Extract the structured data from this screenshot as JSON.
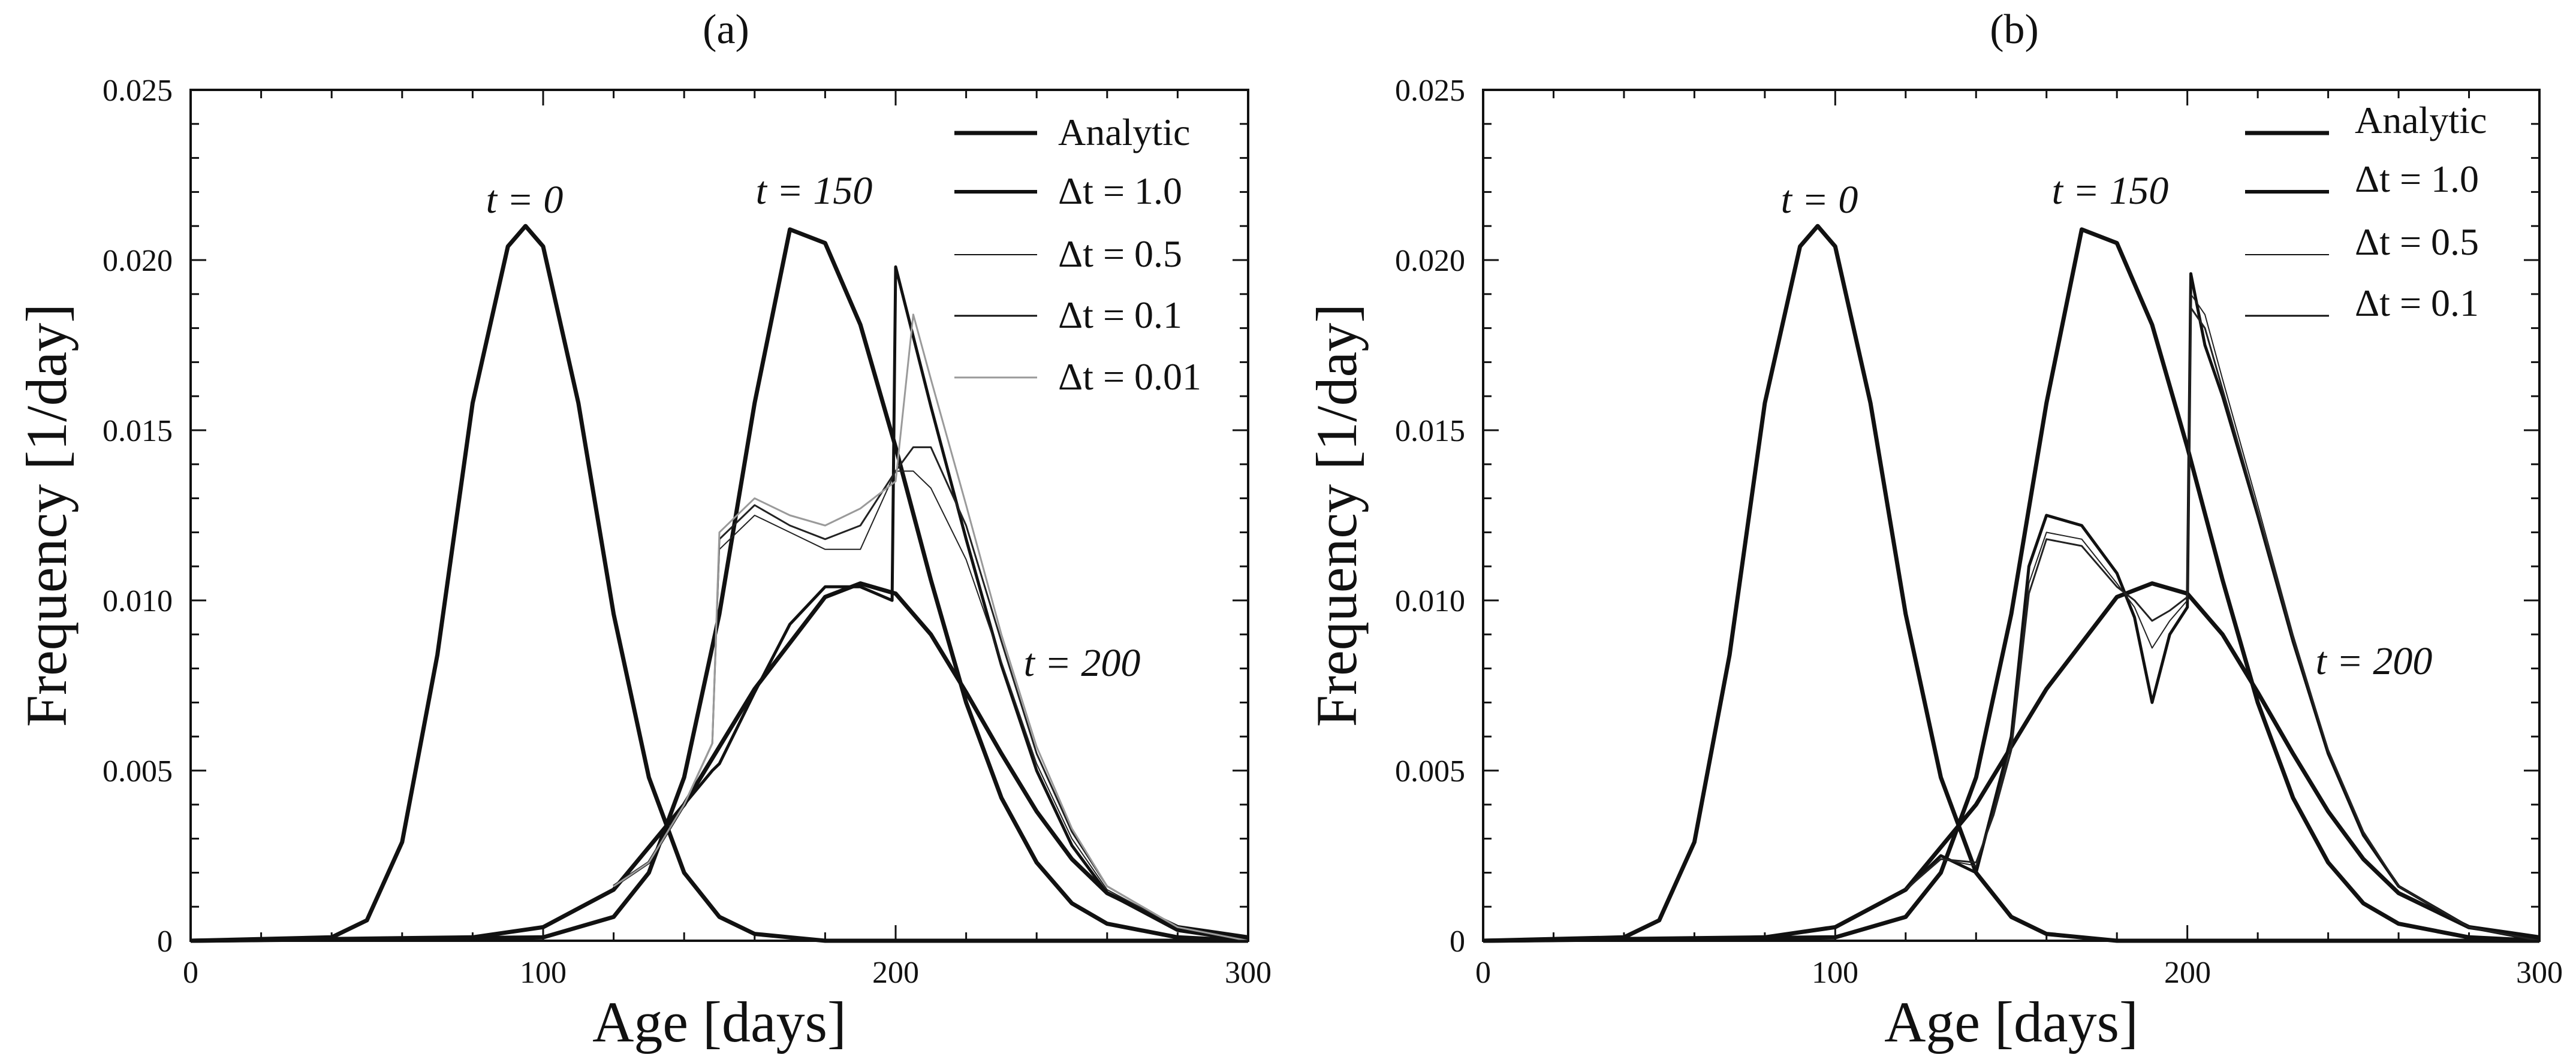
{
  "chart_data": [
    {
      "type": "line",
      "panel_label": "(a)",
      "xlabel": "Age [days]",
      "ylabel": "Frequency [1/day]",
      "xlim": [
        0,
        300
      ],
      "ylim": [
        0,
        0.025
      ],
      "xticks": [
        "0",
        "100",
        "200",
        "300"
      ],
      "yticks": [
        "0",
        "0.005",
        "0.010",
        "0.015",
        "0.020",
        "0.025"
      ],
      "grid": false,
      "legend_position": "top-right",
      "legend": [
        {
          "label": "Analytic",
          "weight": "bold"
        },
        {
          "label": "Δt = 1.0",
          "weight": "bold"
        },
        {
          "label": "Δt = 0.5",
          "weight": "thin"
        },
        {
          "label": "Δt = 0.1",
          "weight": "medium"
        },
        {
          "label": "Δt = 0.01",
          "weight": "light"
        }
      ],
      "annotations": [
        {
          "text": "t = 0",
          "x": 95,
          "y": 0.0215
        },
        {
          "text": "t = 150",
          "x": 170,
          "y": 0.0216
        },
        {
          "text": "t = 200",
          "x": 240,
          "y": 0.0079
        }
      ],
      "series": [
        {
          "name": "Analytic, t = 0",
          "x": [
            0,
            40,
            50,
            60,
            70,
            80,
            90,
            95,
            100,
            110,
            120,
            130,
            140,
            150,
            160,
            170,
            180,
            200,
            230,
            300
          ],
          "y": [
            0,
            0.0001,
            0.0006,
            0.0029,
            0.0084,
            0.0158,
            0.0204,
            0.021,
            0.0204,
            0.0158,
            0.0096,
            0.0048,
            0.002,
            0.0007,
            0.0002,
            0.0001,
            0,
            0,
            0,
            0
          ]
        },
        {
          "name": "Analytic, t = 150",
          "x": [
            0,
            100,
            120,
            130,
            140,
            150,
            160,
            170,
            180,
            190,
            200,
            210,
            220,
            230,
            240,
            250,
            260,
            280,
            300
          ],
          "y": [
            0,
            0.0001,
            0.0007,
            0.002,
            0.0048,
            0.0096,
            0.0158,
            0.0209,
            0.0205,
            0.0181,
            0.0145,
            0.0106,
            0.007,
            0.0042,
            0.0023,
            0.0011,
            0.0005,
            0.0001,
            0
          ]
        },
        {
          "name": "Analytic, t = 200",
          "x": [
            0,
            80,
            100,
            120,
            140,
            160,
            180,
            190,
            200,
            210,
            220,
            230,
            240,
            250,
            260,
            280,
            300
          ],
          "y": [
            0,
            0.0001,
            0.0004,
            0.0015,
            0.004,
            0.0074,
            0.0101,
            0.0105,
            0.0102,
            0.009,
            0.0073,
            0.0055,
            0.0038,
            0.0024,
            0.0014,
            0.0004,
            0.0001
          ]
        },
        {
          "name": "Δt = 1.0, t = 200",
          "x": [
            120,
            130,
            140,
            148,
            150,
            160,
            170,
            180,
            190,
            199,
            200,
            210,
            220,
            230,
            240,
            250,
            260,
            280,
            300
          ],
          "y": [
            0.0016,
            0.0023,
            0.004,
            0.005,
            0.0052,
            0.0073,
            0.0093,
            0.0104,
            0.0104,
            0.01,
            0.0198,
            0.0157,
            0.0118,
            0.0081,
            0.005,
            0.0028,
            0.0014,
            0.0003,
            0
          ]
        },
        {
          "name": "Δt = 0.5, t = 200",
          "x": [
            120,
            130,
            140,
            148,
            150,
            160,
            170,
            180,
            190,
            200,
            205,
            210,
            220,
            230,
            240,
            250,
            260,
            280,
            300
          ],
          "y": [
            0.0016,
            0.0023,
            0.004,
            0.0058,
            0.0115,
            0.0125,
            0.012,
            0.0115,
            0.0115,
            0.0138,
            0.0138,
            0.0133,
            0.0112,
            0.0082,
            0.0052,
            0.003,
            0.0015,
            0.0004,
            0
          ]
        },
        {
          "name": "Δt = 0.1, t = 200",
          "x": [
            120,
            130,
            140,
            148,
            150,
            160,
            170,
            180,
            190,
            200,
            205,
            210,
            220,
            230,
            240,
            250,
            260,
            280,
            300
          ],
          "y": [
            0.0016,
            0.0023,
            0.004,
            0.0058,
            0.0118,
            0.0128,
            0.0122,
            0.0118,
            0.0122,
            0.0138,
            0.0145,
            0.0145,
            0.0122,
            0.0088,
            0.0055,
            0.0032,
            0.0016,
            0.0004,
            0
          ]
        },
        {
          "name": "Δt = 0.01, t = 200",
          "x": [
            120,
            130,
            140,
            148,
            150,
            160,
            170,
            180,
            190,
            200,
            205,
            210,
            220,
            230,
            240,
            250,
            260,
            280,
            300
          ],
          "y": [
            0.0016,
            0.0023,
            0.004,
            0.0058,
            0.012,
            0.013,
            0.0125,
            0.0122,
            0.0127,
            0.0135,
            0.0184,
            0.0165,
            0.0128,
            0.009,
            0.0057,
            0.0033,
            0.0016,
            0.0004,
            0
          ]
        }
      ]
    },
    {
      "type": "line",
      "panel_label": "(b)",
      "xlabel": "Age [days]",
      "ylabel": "Frequency [1/day]",
      "xlim": [
        0,
        300
      ],
      "ylim": [
        0,
        0.025
      ],
      "xticks": [
        "0",
        "100",
        "200",
        "300"
      ],
      "yticks": [
        "0",
        "0.005",
        "0.010",
        "0.015",
        "0.020",
        "0.025"
      ],
      "grid": false,
      "legend_position": "top-right",
      "legend": [
        {
          "label": "Analytic",
          "weight": "bold"
        },
        {
          "label": "Δt = 1.0",
          "weight": "bold"
        },
        {
          "label": "Δt = 0.5",
          "weight": "thin"
        },
        {
          "label": "Δt = 0.1",
          "weight": "medium"
        }
      ],
      "annotations": [
        {
          "text": "t = 0",
          "x": 95,
          "y": 0.0215
        },
        {
          "text": "t = 150",
          "x": 170,
          "y": 0.0216
        },
        {
          "text": "t = 200",
          "x": 240,
          "y": 0.0079
        }
      ],
      "series": [
        {
          "name": "Analytic, t = 0",
          "x": [
            0,
            40,
            50,
            60,
            70,
            80,
            90,
            95,
            100,
            110,
            120,
            130,
            140,
            150,
            160,
            170,
            180,
            200,
            230,
            300
          ],
          "y": [
            0,
            0.0001,
            0.0006,
            0.0029,
            0.0084,
            0.0158,
            0.0204,
            0.021,
            0.0204,
            0.0158,
            0.0096,
            0.0048,
            0.002,
            0.0007,
            0.0002,
            0.0001,
            0,
            0,
            0,
            0
          ]
        },
        {
          "name": "Analytic, t = 150",
          "x": [
            0,
            100,
            120,
            130,
            140,
            150,
            160,
            170,
            180,
            190,
            200,
            210,
            220,
            230,
            240,
            250,
            260,
            280,
            300
          ],
          "y": [
            0,
            0.0001,
            0.0007,
            0.002,
            0.0048,
            0.0096,
            0.0158,
            0.0209,
            0.0205,
            0.0181,
            0.0145,
            0.0106,
            0.007,
            0.0042,
            0.0023,
            0.0011,
            0.0005,
            0.0001,
            0
          ]
        },
        {
          "name": "Analytic, t = 200",
          "x": [
            0,
            80,
            100,
            120,
            140,
            160,
            180,
            190,
            200,
            210,
            220,
            230,
            240,
            250,
            260,
            280,
            300
          ],
          "y": [
            0,
            0.0001,
            0.0004,
            0.0015,
            0.004,
            0.0074,
            0.0101,
            0.0105,
            0.0102,
            0.009,
            0.0073,
            0.0055,
            0.0038,
            0.0024,
            0.0014,
            0.0004,
            0.0001
          ]
        },
        {
          "name": "Δt = 1.0, t = 200",
          "x": [
            120,
            130,
            140,
            145,
            150,
            155,
            160,
            170,
            180,
            185,
            190,
            195,
            200,
            201,
            205,
            210,
            220,
            230,
            240,
            250,
            260,
            280,
            300
          ],
          "y": [
            0.0015,
            0.0025,
            0.002,
            0.004,
            0.006,
            0.011,
            0.0125,
            0.0122,
            0.0108,
            0.0095,
            0.007,
            0.009,
            0.0098,
            0.0196,
            0.0175,
            0.016,
            0.0125,
            0.0088,
            0.0055,
            0.0031,
            0.0016,
            0.0004,
            0
          ]
        },
        {
          "name": "Δt = 0.5, t = 200",
          "x": [
            120,
            130,
            140,
            145,
            150,
            155,
            160,
            170,
            180,
            185,
            190,
            195,
            200,
            201,
            205,
            210,
            220,
            230,
            240,
            250,
            260,
            280,
            300
          ],
          "y": [
            0.0015,
            0.0024,
            0.0022,
            0.0038,
            0.0058,
            0.0105,
            0.012,
            0.0118,
            0.0105,
            0.0098,
            0.0086,
            0.0094,
            0.01,
            0.019,
            0.0184,
            0.0165,
            0.0128,
            0.009,
            0.0056,
            0.0032,
            0.0016,
            0.0004,
            0
          ]
        },
        {
          "name": "Δt = 0.1, t = 200",
          "x": [
            120,
            130,
            140,
            145,
            150,
            155,
            160,
            170,
            180,
            185,
            190,
            195,
            200,
            201,
            205,
            210,
            220,
            230,
            240,
            250,
            260,
            280,
            300
          ],
          "y": [
            0.0015,
            0.0024,
            0.0023,
            0.0037,
            0.0056,
            0.0102,
            0.0118,
            0.0116,
            0.0104,
            0.01,
            0.0094,
            0.0097,
            0.0101,
            0.0186,
            0.018,
            0.0162,
            0.0126,
            0.0089,
            0.0056,
            0.0032,
            0.0016,
            0.0004,
            0
          ]
        }
      ]
    }
  ]
}
